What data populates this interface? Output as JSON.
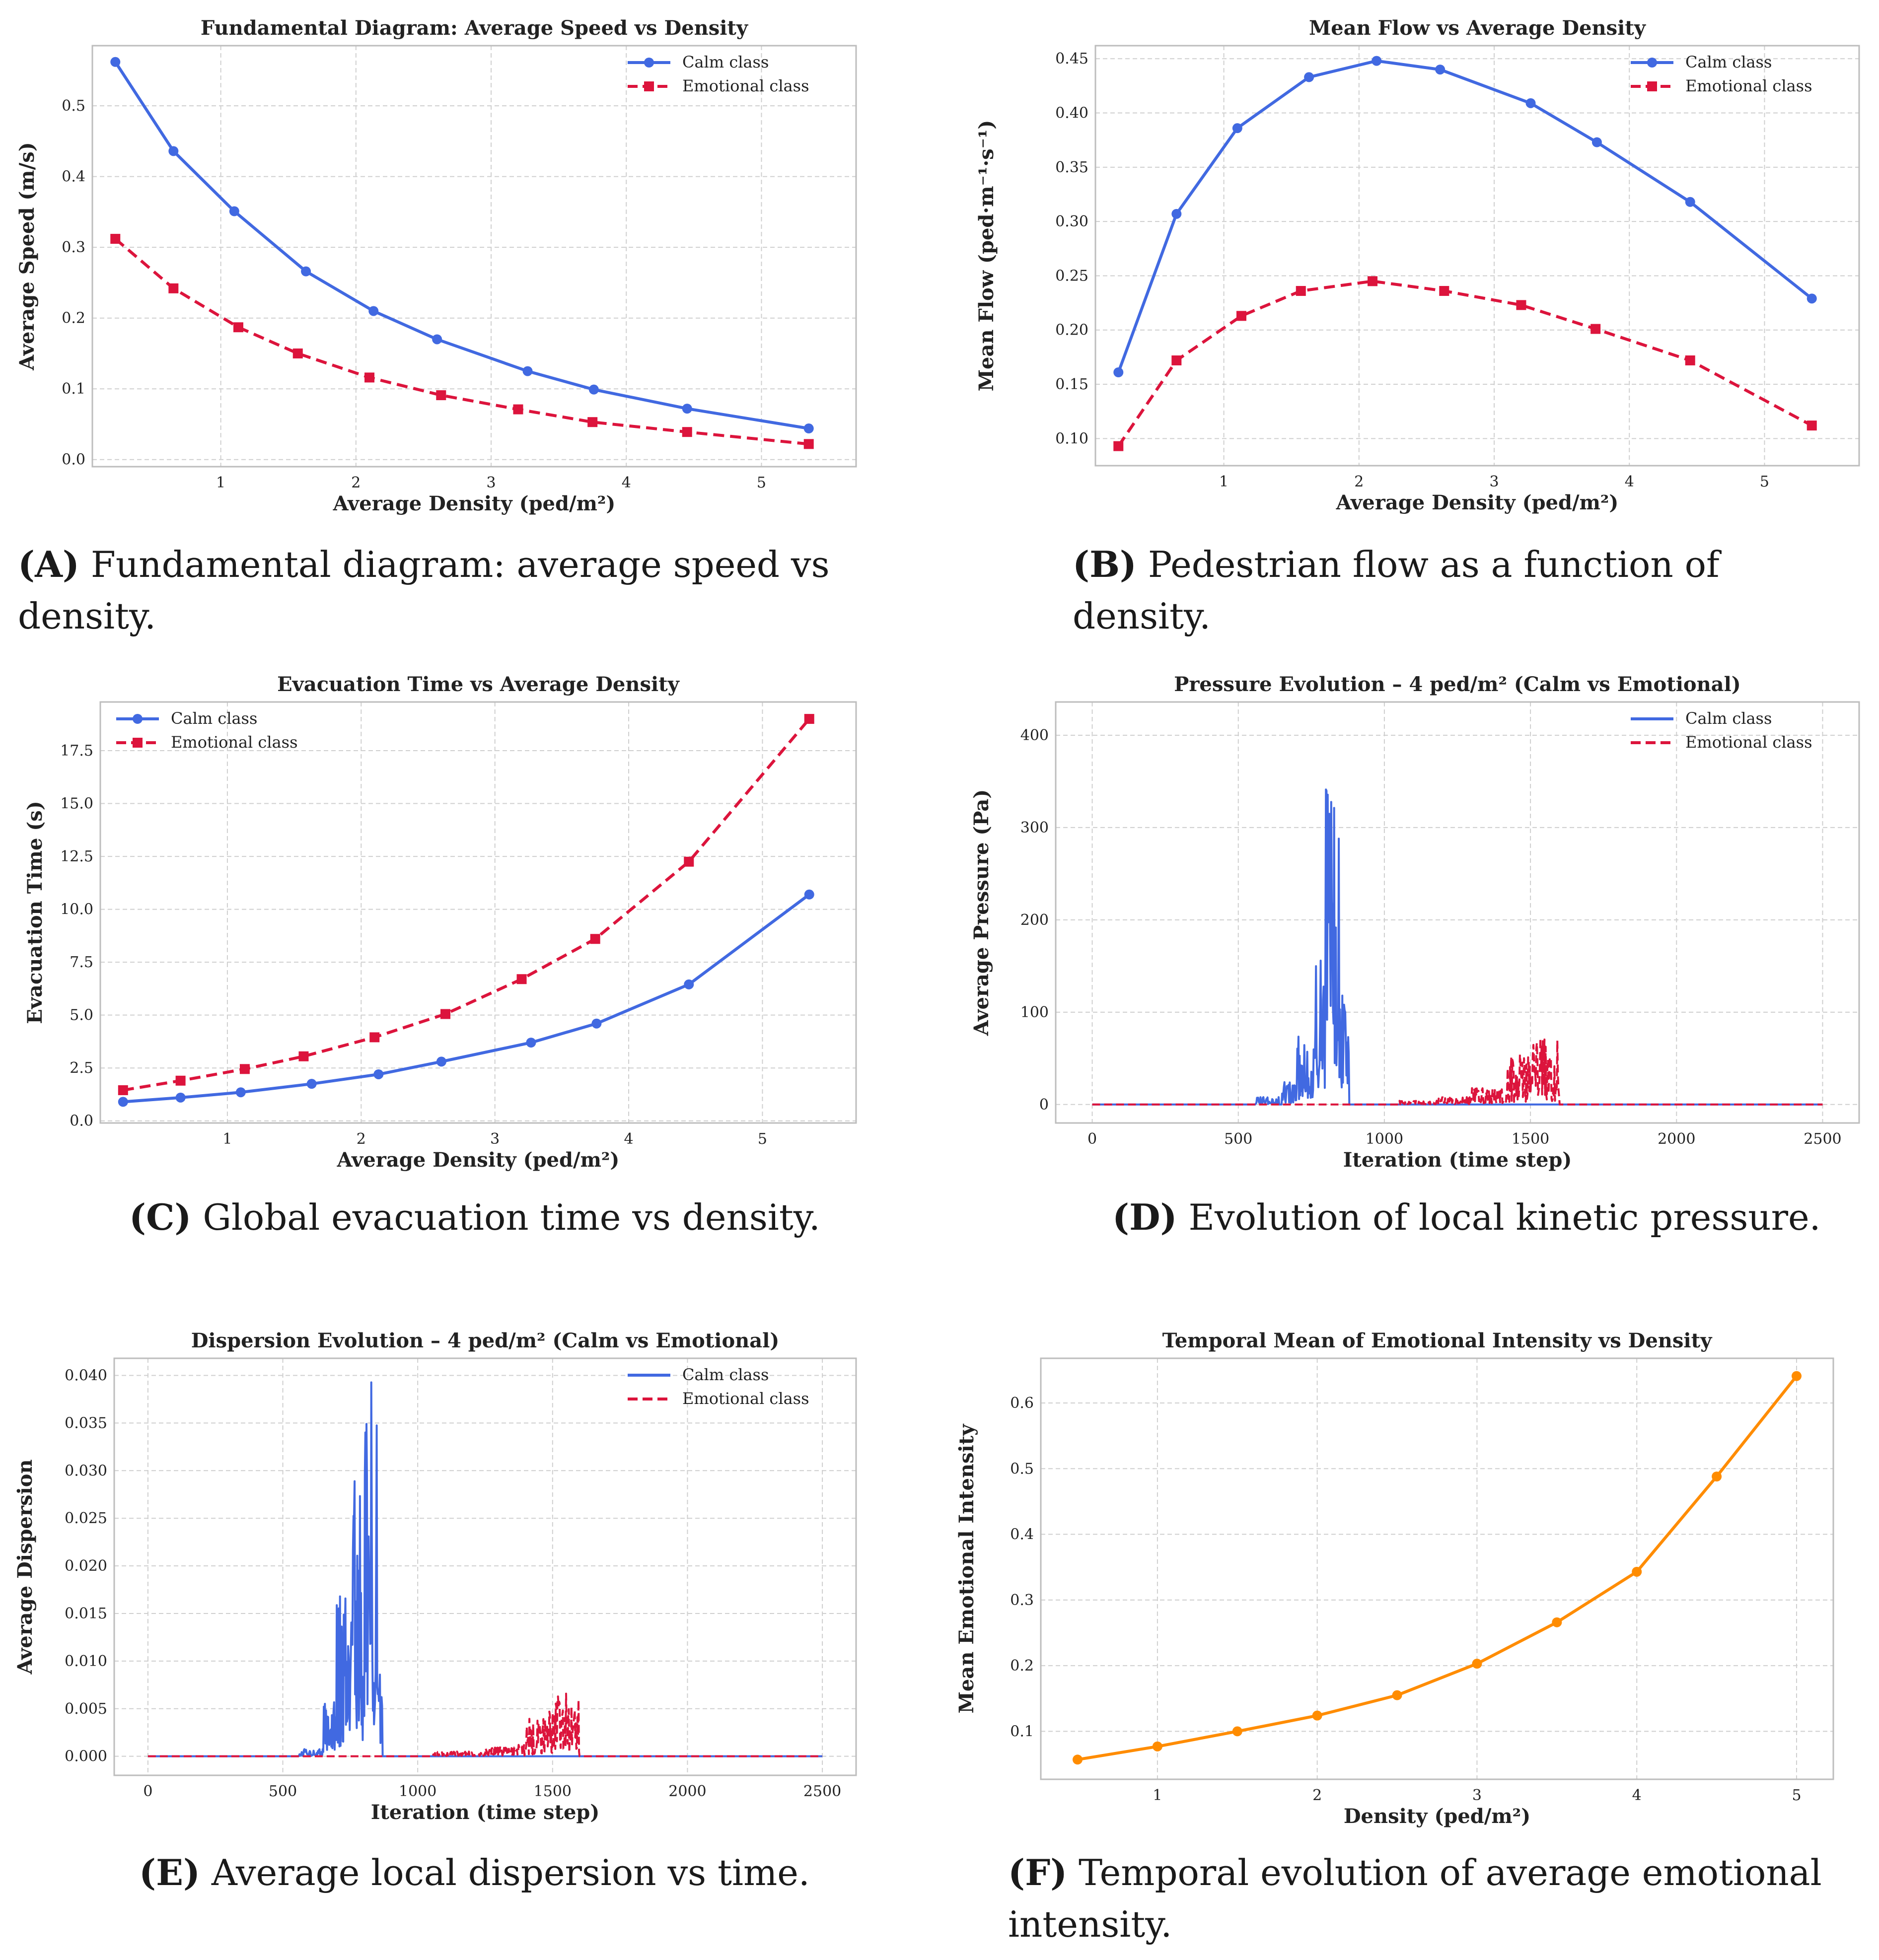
{
  "colors": {
    "calm": "#4169e1",
    "emotional": "#dc143c",
    "intensity": "#ff8c00"
  },
  "captions": [
    {
      "tag": "(A)",
      "text": "Fundamental diagram: average speed vs density."
    },
    {
      "tag": "(B)",
      "text": "Pedestrian flow as a function of density."
    },
    {
      "tag": "(C)",
      "text": "Global evacuation time vs density."
    },
    {
      "tag": "(D)",
      "text": "Evolution of local kinetic pressure."
    },
    {
      "tag": "(E)",
      "text": "Average local dispersion vs time."
    },
    {
      "tag": "(F)",
      "text": "Temporal evolution of average emotional intensity."
    }
  ],
  "chart_data": [
    {
      "id": "A",
      "type": "line",
      "title": "Fundamental Diagram: Average Speed vs Density",
      "xlabel": "Average Density (ped/m²)",
      "ylabel": "Average Speed (m/s)",
      "xlim": [
        0.05,
        5.7
      ],
      "ylim": [
        -0.01,
        0.585
      ],
      "xticks": [
        1,
        2,
        3,
        4,
        5
      ],
      "yticks": [
        0.0,
        0.1,
        0.2,
        0.3,
        0.4,
        0.5
      ],
      "ytick_labels": [
        "0.0",
        "0.1",
        "0.2",
        "0.3",
        "0.4",
        "0.5"
      ],
      "grid": true,
      "legend": "top-right",
      "series": [
        {
          "name": "Calm class",
          "color": "calm",
          "dash": "solid",
          "marker": "circle",
          "x": [
            0.22,
            0.65,
            1.1,
            1.63,
            2.13,
            2.6,
            3.27,
            3.76,
            4.45,
            5.35
          ],
          "y": [
            0.562,
            0.436,
            0.351,
            0.266,
            0.21,
            0.17,
            0.125,
            0.099,
            0.072,
            0.044
          ]
        },
        {
          "name": "Emotional class",
          "color": "emotional",
          "dash": "dashed",
          "marker": "square",
          "x": [
            0.22,
            0.65,
            1.13,
            1.57,
            2.1,
            2.63,
            3.2,
            3.75,
            4.45,
            5.35
          ],
          "y": [
            0.312,
            0.242,
            0.187,
            0.15,
            0.116,
            0.091,
            0.071,
            0.053,
            0.039,
            0.022
          ]
        }
      ]
    },
    {
      "id": "B",
      "type": "line",
      "title": "Mean Flow vs Average Density",
      "xlabel": "Average Density (ped/m²)",
      "ylabel": "Mean Flow (ped·m⁻¹·s⁻¹)",
      "xlim": [
        0.05,
        5.7
      ],
      "ylim": [
        0.075,
        0.462
      ],
      "xticks": [
        1,
        2,
        3,
        4,
        5
      ],
      "yticks": [
        0.1,
        0.15,
        0.2,
        0.25,
        0.3,
        0.35,
        0.4,
        0.45
      ],
      "ytick_labels": [
        "0.10",
        "0.15",
        "0.20",
        "0.25",
        "0.30",
        "0.35",
        "0.40",
        "0.45"
      ],
      "grid": true,
      "legend": "top-right",
      "series": [
        {
          "name": "Calm class",
          "color": "calm",
          "dash": "solid",
          "marker": "circle",
          "x": [
            0.22,
            0.65,
            1.1,
            1.63,
            2.13,
            2.6,
            3.27,
            3.76,
            4.45,
            5.35
          ],
          "y": [
            0.161,
            0.307,
            0.386,
            0.433,
            0.448,
            0.44,
            0.409,
            0.373,
            0.318,
            0.229
          ]
        },
        {
          "name": "Emotional class",
          "color": "emotional",
          "dash": "dashed",
          "marker": "square",
          "x": [
            0.22,
            0.65,
            1.13,
            1.57,
            2.1,
            2.63,
            3.2,
            3.75,
            4.45,
            5.35
          ],
          "y": [
            0.093,
            0.172,
            0.213,
            0.236,
            0.245,
            0.236,
            0.223,
            0.201,
            0.172,
            0.112
          ]
        }
      ]
    },
    {
      "id": "C",
      "type": "line",
      "title": "Evacuation Time vs Average Density",
      "xlabel": "Average Density (ped/m²)",
      "ylabel": "Evacuation Time (s)",
      "xlim": [
        0.05,
        5.7
      ],
      "ylim": [
        -0.1,
        19.8
      ],
      "xticks": [
        1,
        2,
        3,
        4,
        5
      ],
      "yticks": [
        0,
        2.5,
        5,
        7.5,
        10,
        12.5,
        15,
        17.5
      ],
      "ytick_labels": [
        "0.0",
        "2.5",
        "5.0",
        "7.5",
        "10.0",
        "12.5",
        "15.0",
        "17.5"
      ],
      "grid": true,
      "legend": "top-left",
      "series": [
        {
          "name": "Calm class",
          "color": "calm",
          "dash": "solid",
          "marker": "circle",
          "x": [
            0.22,
            0.65,
            1.1,
            1.63,
            2.13,
            2.6,
            3.27,
            3.76,
            4.45,
            5.35
          ],
          "y": [
            0.9,
            1.1,
            1.35,
            1.75,
            2.2,
            2.8,
            3.7,
            4.6,
            6.45,
            10.7
          ]
        },
        {
          "name": "Emotional class",
          "color": "emotional",
          "dash": "dashed",
          "marker": "square",
          "x": [
            0.22,
            0.65,
            1.13,
            1.57,
            2.1,
            2.63,
            3.2,
            3.75,
            4.45,
            5.35
          ],
          "y": [
            1.45,
            1.9,
            2.45,
            3.05,
            3.95,
            5.05,
            6.7,
            8.6,
            12.25,
            19.0
          ]
        }
      ]
    },
    {
      "id": "D",
      "type": "line",
      "title": "Pressure Evolution – 4 ped/m² (Calm vs Emotional)",
      "xlabel": "Iteration (time step)",
      "ylabel": "Average Pressure (Pa)",
      "xlim": [
        -125,
        2625
      ],
      "ylim": [
        -20,
        436
      ],
      "xticks": [
        0,
        500,
        1000,
        1500,
        2000,
        2500
      ],
      "yticks": [
        0,
        100,
        200,
        300,
        400
      ],
      "ytick_labels": [
        "0",
        "100",
        "200",
        "300",
        "400"
      ],
      "grid": true,
      "legend": "top-right",
      "series": [
        {
          "name": "Calm class",
          "color": "calm",
          "dash": "solid",
          "marker": "none",
          "bursts": [
            [
              560,
              640,
              8
            ],
            [
              650,
              700,
              25
            ],
            [
              700,
              760,
              75
            ],
            [
              760,
              800,
              200
            ],
            [
              800,
              830,
              415
            ],
            [
              830,
              850,
              360
            ],
            [
              850,
              880,
              120
            ]
          ]
        },
        {
          "name": "Emotional class",
          "color": "emotional",
          "dash": "dashed",
          "marker": "none",
          "bursts": [
            [
              1050,
              1180,
              4
            ],
            [
              1180,
              1300,
              8
            ],
            [
              1300,
              1420,
              18
            ],
            [
              1420,
              1500,
              55
            ],
            [
              1500,
              1560,
              72
            ],
            [
              1560,
              1600,
              70
            ]
          ]
        }
      ]
    },
    {
      "id": "E",
      "type": "line",
      "title": "Dispersion Evolution – 4 ped/m² (Calm vs Emotional)",
      "xlabel": "Iteration (time step)",
      "ylabel": "Average Dispersion",
      "xlim": [
        -125,
        2625
      ],
      "ylim": [
        -0.002,
        0.0418
      ],
      "xticks": [
        0,
        500,
        1000,
        1500,
        2000,
        2500
      ],
      "yticks": [
        0,
        0.005,
        0.01,
        0.015,
        0.02,
        0.025,
        0.03,
        0.035,
        0.04
      ],
      "ytick_labels": [
        "0.000",
        "0.005",
        "0.010",
        "0.015",
        "0.020",
        "0.025",
        "0.030",
        "0.035",
        "0.040"
      ],
      "grid": true,
      "legend": "top-right",
      "series": [
        {
          "name": "Calm class",
          "color": "calm",
          "dash": "solid",
          "marker": "none",
          "bursts": [
            [
              560,
              650,
              0.0008
            ],
            [
              650,
              700,
              0.006
            ],
            [
              700,
              760,
              0.017
            ],
            [
              760,
              800,
              0.032
            ],
            [
              800,
              830,
              0.04
            ],
            [
              830,
              850,
              0.035
            ],
            [
              850,
              870,
              0.012
            ]
          ]
        },
        {
          "name": "Emotional class",
          "color": "emotional",
          "dash": "dashed",
          "marker": "none",
          "bursts": [
            [
              1050,
              1250,
              0.0005
            ],
            [
              1250,
              1400,
              0.0012
            ],
            [
              1400,
              1480,
              0.004
            ],
            [
              1480,
              1540,
              0.007
            ],
            [
              1540,
              1600,
              0.0068
            ]
          ]
        }
      ]
    },
    {
      "id": "F",
      "type": "line",
      "title": "Temporal Mean of Emotional Intensity vs Density",
      "xlabel": "Density (ped/m²)",
      "ylabel": "Mean Emotional Intensity",
      "xlim": [
        0.27,
        5.23
      ],
      "ylim": [
        0.027,
        0.668
      ],
      "xticks": [
        1,
        2,
        3,
        4,
        5
      ],
      "yticks": [
        0.1,
        0.2,
        0.3,
        0.4,
        0.5,
        0.6
      ],
      "ytick_labels": [
        "0.1",
        "0.2",
        "0.3",
        "0.4",
        "0.5",
        "0.6"
      ],
      "grid": true,
      "legend": "none",
      "series": [
        {
          "name": "",
          "color": "intensity",
          "dash": "solid",
          "marker": "circle",
          "x": [
            0.5,
            1.0,
            1.5,
            2.0,
            2.5,
            3.0,
            3.5,
            4.0,
            4.5,
            5.0
          ],
          "y": [
            0.057,
            0.077,
            0.1,
            0.124,
            0.155,
            0.203,
            0.266,
            0.343,
            0.488,
            0.641
          ]
        }
      ]
    }
  ]
}
